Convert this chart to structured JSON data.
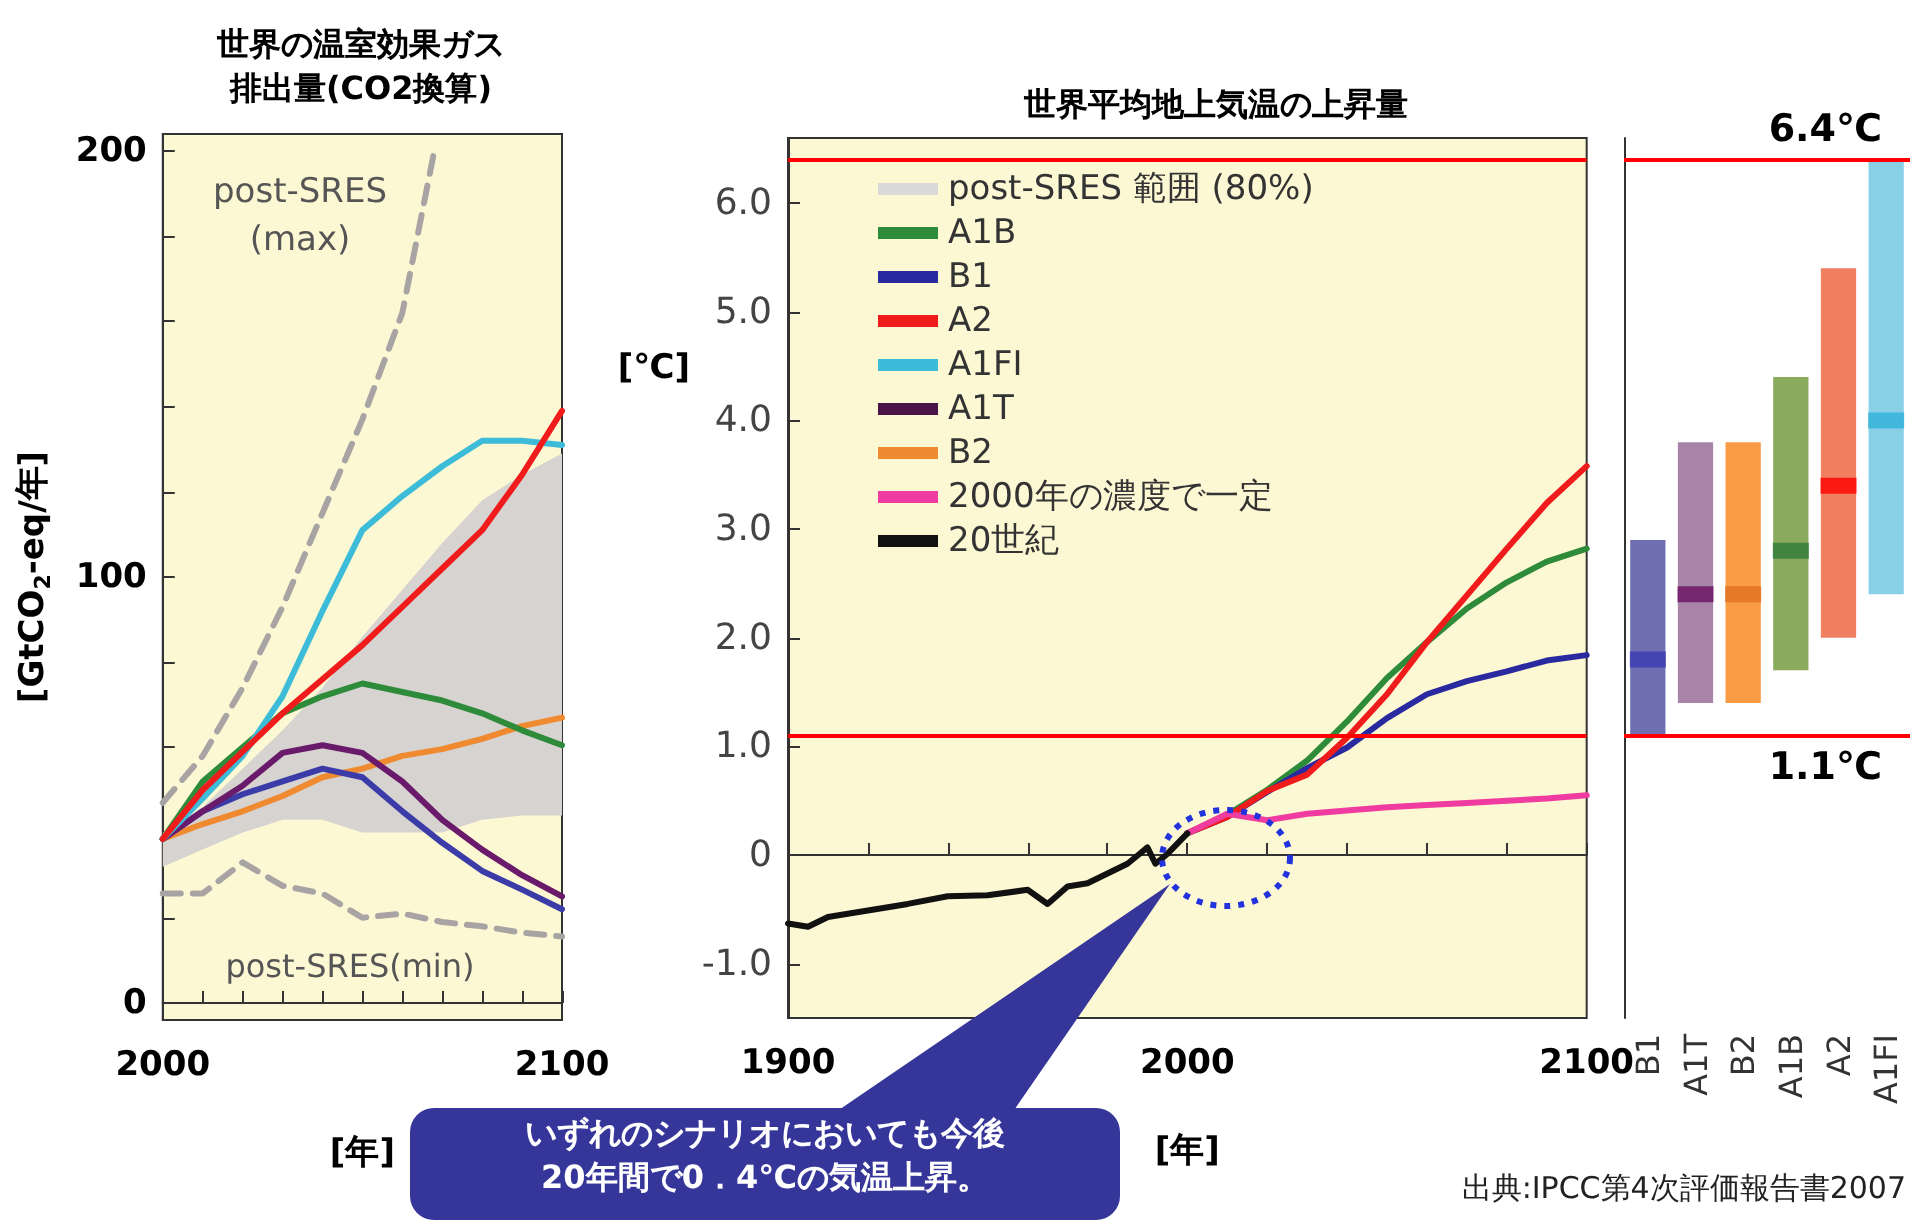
{
  "chart_data": [
    {
      "type": "line",
      "title": "世界の温室効果ガス排出量(CO2換算)",
      "ylabel": "[GtCO$_{2}$-eq/年]",
      "xlabel": "[年]",
      "marker": "none",
      "x": [
        2000,
        2010,
        2020,
        2030,
        2040,
        2050,
        2060,
        2070,
        2080,
        2090,
        2100
      ],
      "xlim": [
        2000,
        2100
      ],
      "xticks": [
        2000,
        {
          "value": 2010,
          "label": null
        },
        {
          "value": 2020,
          "label": null
        },
        {
          "value": 2030,
          "label": null
        },
        {
          "value": 2040,
          "label": null
        },
        {
          "value": 2050,
          "label": null
        },
        {
          "value": 2060,
          "label": null
        },
        {
          "value": 2070,
          "label": null
        },
        {
          "value": 2080,
          "label": null
        },
        {
          "value": 2090,
          "label": null
        },
        2100
      ],
      "ylim": [
        -4,
        204
      ],
      "yticks": [
        0,
        {
          "value": 20,
          "label": null
        },
        {
          "value": 40,
          "label": null
        },
        {
          "value": 60,
          "label": null
        },
        {
          "value": 80,
          "label": null
        },
        100,
        {
          "value": 120,
          "label": null
        },
        {
          "value": 140,
          "label": null
        },
        {
          "value": 160,
          "label": null
        },
        {
          "value": 180,
          "label": null
        },
        200
      ],
      "annotations": [
        "post-SRES\n(max)",
        "post-SRES(min)"
      ],
      "series": [
        {
          "type": "area",
          "color": "#d6d3d0",
          "values": [
            null,
            null,
            null,
            null,
            null,
            null,
            null,
            null,
            null,
            null,
            null
          ],
          "lower": [
            32,
            36,
            40,
            43,
            43,
            40,
            40,
            40,
            43,
            44,
            44
          ],
          "upper": [
            40,
            46,
            55,
            64,
            74,
            86,
            97,
            108,
            118,
            124,
            129
          ]
        },
        {
          "color": "#a8a4a4",
          "line_style": "dashed",
          "x": [
            2000,
            2010,
            2020,
            2030,
            2040,
            2050,
            2060,
            2068
          ],
          "values": [
            47,
            58,
            74,
            93,
            115,
            137,
            162,
            200
          ]
        },
        {
          "color": "#a8a4a4",
          "line_style": "dashed",
          "values": [
            25.7,
            25.7,
            33,
            27.5,
            25.7,
            20,
            21,
            19,
            18,
            16.5,
            15.6
          ]
        },
        {
          "color": "#f08a30",
          "values": [
            38.5,
            42,
            45,
            48.6,
            53,
            55,
            58,
            59.6,
            62,
            65,
            67
          ]
        },
        {
          "color": "#3c3ca8",
          "values": [
            38.5,
            45,
            49,
            52,
            55,
            53,
            45,
            37.6,
            31,
            26.6,
            22
          ]
        },
        {
          "color": "#6a1a6a",
          "values": [
            38.5,
            45,
            51,
            58.7,
            60.5,
            58.7,
            52,
            43,
            36,
            30,
            25
          ]
        },
        {
          "color": "#2e8b3a",
          "values": [
            38.5,
            52,
            60,
            68,
            72,
            75,
            73,
            71,
            68,
            64,
            60.5
          ]
        },
        {
          "color": "#3cbcd8",
          "values": [
            38.5,
            48,
            58,
            72,
            92,
            111,
            119,
            126,
            132,
            132,
            131
          ]
        },
        {
          "color": "#f01c1c",
          "values": [
            38.5,
            50,
            59,
            68,
            76,
            84,
            93,
            102,
            111,
            124,
            139
          ]
        }
      ]
    },
    {
      "type": "line",
      "title": "世界平均地上気温の上昇量",
      "ylabel": "[℃]",
      "xlabel": "[年]",
      "marker": "none",
      "legend": "top left",
      "x": [
        2000,
        2010,
        2020,
        2030,
        2040,
        2050,
        2060,
        2070,
        2080,
        2090,
        2100
      ],
      "xlim": [
        1900,
        2100
      ],
      "xticks": [
        1900,
        {
          "value": 1920,
          "label": null
        },
        {
          "value": 1940,
          "label": null
        },
        {
          "value": 1960,
          "label": null
        },
        {
          "value": 1980,
          "label": null
        },
        2000,
        {
          "value": 2020,
          "label": null
        },
        {
          "value": 2040,
          "label": null
        },
        {
          "value": 2060,
          "label": null
        },
        {
          "value": 2080,
          "label": null
        },
        2100
      ],
      "ylim": [
        -1.5,
        6.6
      ],
      "yticks": [
        {
          "value": -1,
          "label": "-1.0"
        },
        0,
        {
          "value": 1,
          "label": "1.0"
        },
        {
          "value": 2,
          "label": "2.0"
        },
        {
          "value": 3,
          "label": "3.0"
        },
        {
          "value": 4,
          "label": "4.0"
        },
        {
          "value": 5,
          "label": "5.0"
        },
        {
          "value": 6,
          "label": "6.0"
        }
      ],
      "ref_lines": [
        {
          "axis": "y",
          "value": 6.4,
          "color": "#ff0000"
        },
        {
          "axis": "y",
          "value": 1.1,
          "color": "#ff0000"
        }
      ],
      "annotations": [
        "いずれのシナリオにおいても今後\n20年間で0．4℃の気温上昇。"
      ],
      "series": [
        {
          "name": "post-SRES 範囲 (80%)",
          "type": "area",
          "color": "#d9d9d9",
          "values": [
            null,
            null,
            null,
            null,
            null,
            null,
            null,
            null,
            null,
            null,
            null
          ]
        },
        {
          "name": "A1B",
          "color": "#2e8b3a",
          "values": [
            0.2,
            0.37,
            0.6,
            0.87,
            1.23,
            1.63,
            1.96,
            2.27,
            2.51,
            2.7,
            2.82
          ]
        },
        {
          "name": "B1",
          "color": "#2a2aa0",
          "values": [
            0.2,
            0.35,
            0.58,
            0.8,
            0.99,
            1.26,
            1.48,
            1.6,
            1.69,
            1.79,
            1.84
          ]
        },
        {
          "name": "A2",
          "color": "#f01c1c",
          "values": [
            0.2,
            0.35,
            0.59,
            0.74,
            1.08,
            1.48,
            1.96,
            2.39,
            2.82,
            3.24,
            3.58
          ]
        },
        {
          "name": "A1FI",
          "color": "#3cbcd8",
          "values": [
            null,
            null,
            null,
            null,
            null,
            null,
            null,
            null,
            null,
            null,
            null
          ]
        },
        {
          "name": "A1T",
          "color": "#4a1448",
          "values": [
            null,
            null,
            null,
            null,
            null,
            null,
            null,
            null,
            null,
            null,
            null
          ]
        },
        {
          "name": "B2",
          "color": "#f08a30",
          "values": [
            null,
            null,
            null,
            null,
            null,
            null,
            null,
            null,
            null,
            null,
            null
          ]
        },
        {
          "name": "2000年の濃度で一定",
          "color": "#f03ca0",
          "values": [
            0.2,
            0.38,
            0.32,
            0.38,
            0.41,
            0.44,
            0.46,
            0.48,
            0.5,
            0.52,
            0.55
          ]
        },
        {
          "name": "20世紀",
          "color": "#111111",
          "x": [
            1900,
            1905,
            1910,
            1920,
            1930,
            1940,
            1950,
            1960,
            1965,
            1970,
            1975,
            1980,
            1985,
            1988,
            1990,
            1992,
            1995,
            2000
          ],
          "values": [
            -0.63,
            -0.66,
            -0.57,
            -0.51,
            -0.45,
            -0.38,
            -0.37,
            -0.32,
            -0.45,
            -0.29,
            -0.26,
            -0.17,
            -0.08,
            0.01,
            0.07,
            -0.08,
            0.01,
            0.2
          ]
        }
      ]
    },
    {
      "type": "bar",
      "tick_labels": "x",
      "categories": [
        "B1",
        "A1T",
        "B2",
        "A1B",
        "A2",
        "A1FI"
      ],
      "ylim": [
        -1.5,
        6.6
      ],
      "ref_lines": [
        {
          "axis": "y",
          "value": 6.4,
          "label": "6.4℃",
          "color": "#ff0000"
        },
        {
          "axis": "y",
          "value": 1.1,
          "label": "1.1℃",
          "color": "#ff0000"
        }
      ],
      "annotations": [
        "出典:IPCC第4次評価報告書2007"
      ],
      "series": [
        {
          "base": [
            1.1,
            1.4,
            1.4,
            1.7,
            2.0,
            2.4
          ],
          "values": [
            1.8,
            2.4,
            2.4,
            2.7,
            3.4,
            4.0
          ],
          "colors": [
            "#6f6fb4",
            "#a784a8",
            "#f99a45",
            "#8aaa5c",
            "#f08060",
            "#88d0e6"
          ]
        },
        {
          "type": "scatter",
          "marker": "square",
          "x": [
            "B1",
            "A1T",
            "B2",
            "A1B",
            "A2",
            "A1FI"
          ],
          "values": [
            1.8,
            2.4,
            2.4,
            2.8,
            3.4,
            4.0
          ],
          "colors": [
            "#3b3bb0",
            "#6a1060",
            "#e07020",
            "#2d7a3a",
            "#ff0000",
            "#30b0d8"
          ]
        }
      ]
    }
  ]
}
